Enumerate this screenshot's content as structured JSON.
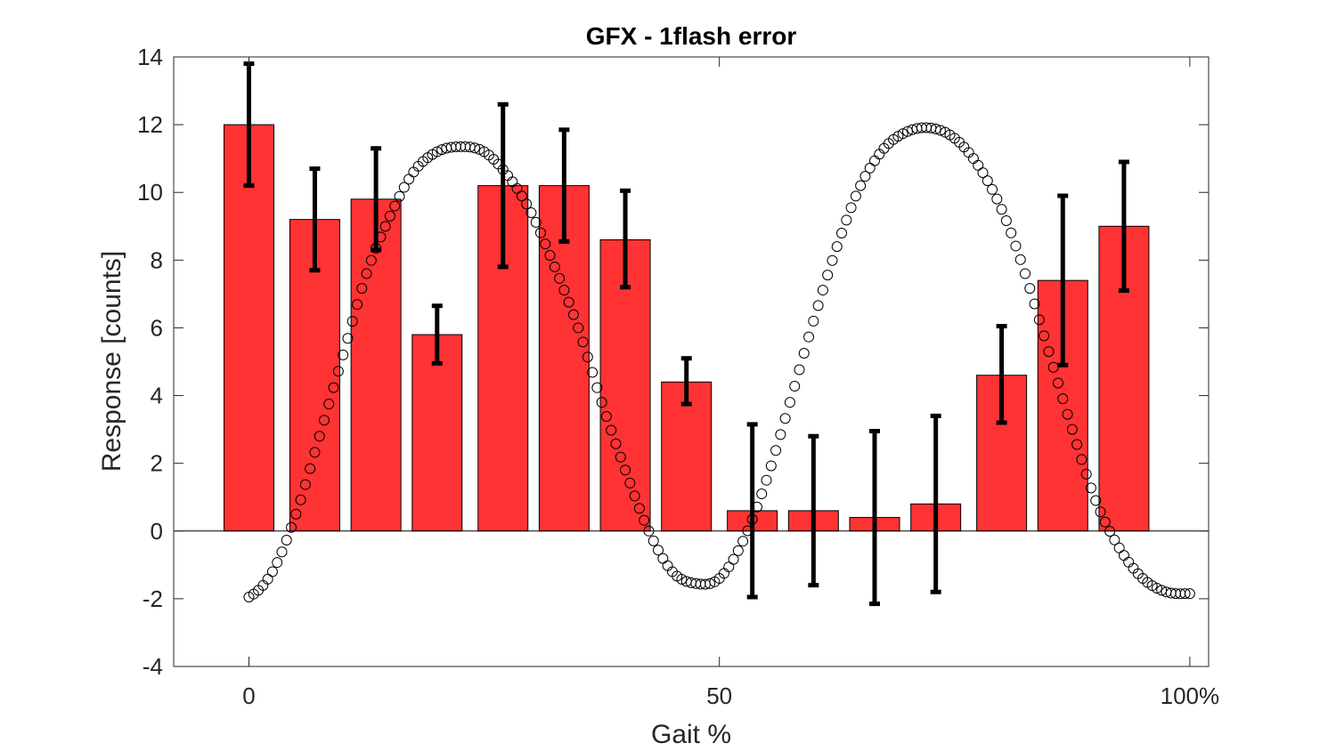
{
  "chart_data": {
    "type": "bar",
    "title": "GFX - 1flash error",
    "xlabel": "Gait %",
    "ylabel": "Response [counts]",
    "xlim": [
      -8,
      102
    ],
    "ylim": [
      -4,
      14
    ],
    "yticks": [
      -4,
      -2,
      0,
      2,
      4,
      6,
      8,
      10,
      12,
      14
    ],
    "xticks": [
      {
        "value": 0,
        "label": "0"
      },
      {
        "value": 50,
        "label": "50"
      },
      {
        "value": 100,
        "label": "100%"
      }
    ],
    "grid": false,
    "bar_color": "#ff3333",
    "errorbar_color": "#000000",
    "curve_color": "#000000",
    "bars": [
      {
        "x": 0.0,
        "value": 12.0,
        "err_low": 10.2,
        "err_high": 13.8
      },
      {
        "x": 7.0,
        "value": 9.2,
        "err_low": 7.7,
        "err_high": 10.7
      },
      {
        "x": 13.5,
        "value": 9.8,
        "err_low": 8.3,
        "err_high": 11.3
      },
      {
        "x": 20.0,
        "value": 5.8,
        "err_low": 4.95,
        "err_high": 6.65
      },
      {
        "x": 27.0,
        "value": 10.2,
        "err_low": 7.8,
        "err_high": 12.6
      },
      {
        "x": 33.5,
        "value": 10.2,
        "err_low": 8.55,
        "err_high": 11.85
      },
      {
        "x": 40.0,
        "value": 8.6,
        "err_low": 7.2,
        "err_high": 10.05
      },
      {
        "x": 46.5,
        "value": 4.4,
        "err_low": 3.75,
        "err_high": 5.1
      },
      {
        "x": 53.5,
        "value": 0.6,
        "err_low": -1.95,
        "err_high": 3.15
      },
      {
        "x": 60.0,
        "value": 0.6,
        "err_low": -1.6,
        "err_high": 2.8
      },
      {
        "x": 66.5,
        "value": 0.4,
        "err_low": -2.15,
        "err_high": 2.95
      },
      {
        "x": 73.0,
        "value": 0.8,
        "err_low": -1.8,
        "err_high": 3.4
      },
      {
        "x": 80.0,
        "value": 4.6,
        "err_low": 3.2,
        "err_high": 6.05
      },
      {
        "x": 86.5,
        "value": 7.4,
        "err_low": 4.9,
        "err_high": 9.9
      },
      {
        "x": 93.0,
        "value": 9.0,
        "err_low": 7.1,
        "err_high": 10.9
      }
    ],
    "curve": {
      "marker": "open-circle",
      "x": [
        0,
        2.5,
        5,
        7.5,
        10,
        12.5,
        15,
        17.5,
        20,
        22.5,
        25,
        27.5,
        30,
        32.5,
        35,
        37.5,
        40,
        42.5,
        45,
        47.5,
        50,
        52.5,
        55,
        57.5,
        60,
        62.5,
        65,
        67.5,
        70,
        72.5,
        75,
        77.5,
        80,
        82.5,
        85,
        87.5,
        90,
        92.5,
        95,
        97.5,
        100
      ],
      "y": [
        -1.95,
        -1.2,
        0.5,
        2.8,
        5.2,
        7.6,
        9.3,
        10.6,
        11.2,
        11.35,
        11.2,
        10.5,
        9.4,
        7.8,
        6.0,
        3.8,
        1.8,
        0.0,
        -1.2,
        -1.55,
        -1.4,
        -0.3,
        1.5,
        3.8,
        6.2,
        8.4,
        10.2,
        11.3,
        11.8,
        11.9,
        11.6,
        10.8,
        9.5,
        7.6,
        5.3,
        3.0,
        0.9,
        -0.5,
        -1.4,
        -1.8,
        -1.85
      ]
    }
  }
}
